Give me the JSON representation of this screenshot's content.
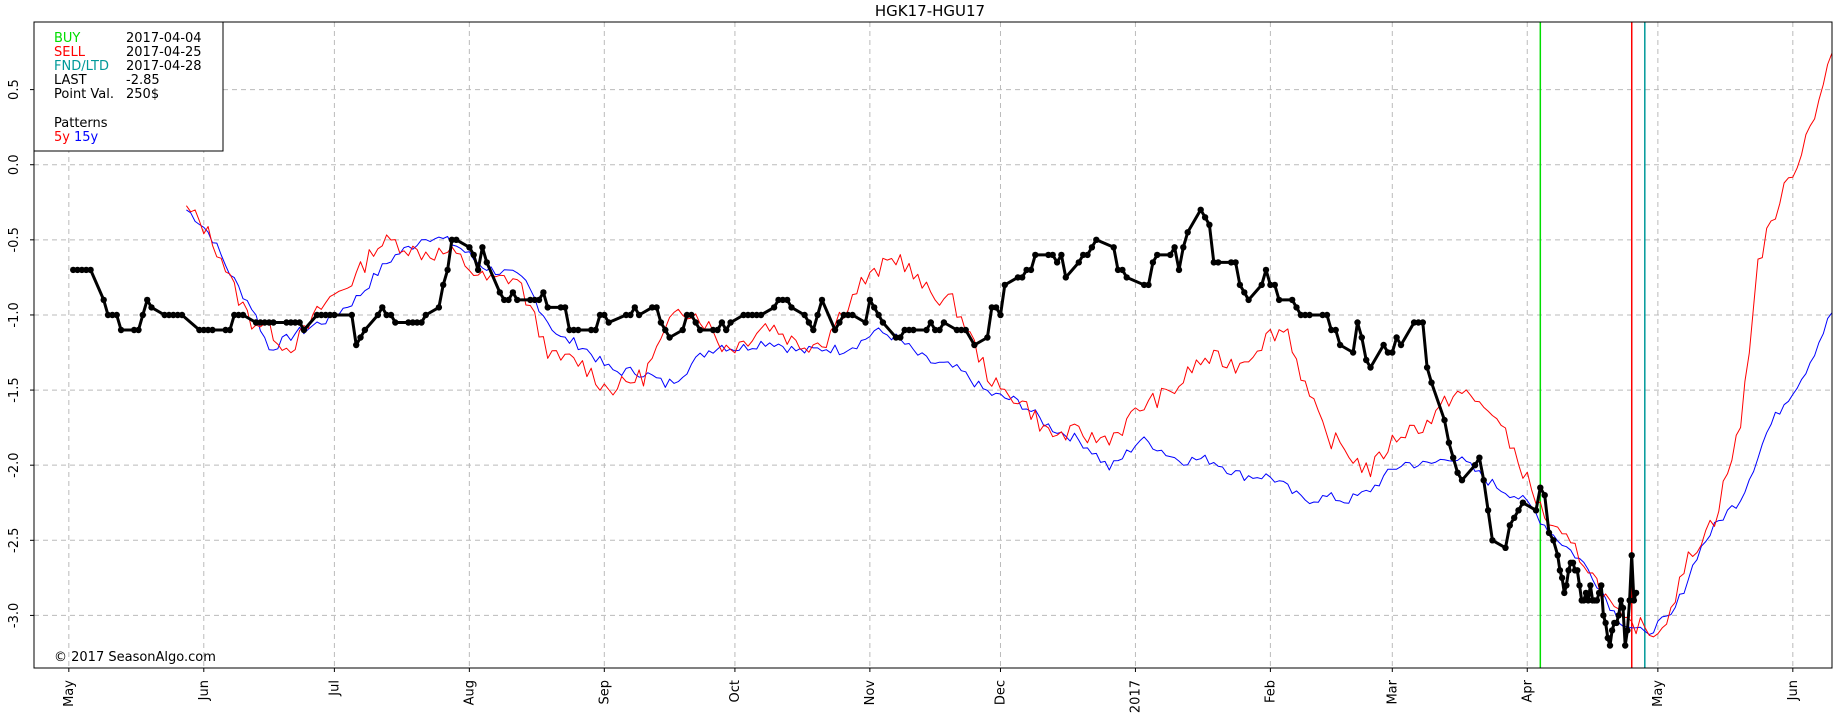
{
  "chart_data": {
    "type": "line",
    "title": "HGK17-HGU17",
    "xlabel": "",
    "ylabel": "",
    "x_range": [
      "2016-04-23",
      "2017-06-10"
    ],
    "ylim": [
      -3.35,
      0.95
    ],
    "y_ticks": [
      0.5,
      0.0,
      -0.5,
      -1.0,
      -1.5,
      -2.0,
      -2.5,
      -3.0
    ],
    "y_tick_labels": [
      "0.5",
      "0.0",
      "-0.5",
      "-1.0",
      "-1.5",
      "-2.0",
      "-2.5",
      "-3.0"
    ],
    "x_ticks": [
      {
        "date": "2016-05-01",
        "label": "May"
      },
      {
        "date": "2016-06-01",
        "label": "Jun"
      },
      {
        "date": "2016-07-01",
        "label": "Jul"
      },
      {
        "date": "2016-08-01",
        "label": "Aug"
      },
      {
        "date": "2016-09-01",
        "label": "Sep"
      },
      {
        "date": "2016-10-01",
        "label": "Oct"
      },
      {
        "date": "2016-11-01",
        "label": "Nov"
      },
      {
        "date": "2016-12-01",
        "label": "Dec"
      },
      {
        "date": "2017-01-01",
        "label": "2017"
      },
      {
        "date": "2017-02-01",
        "label": "Feb"
      },
      {
        "date": "2017-03-01",
        "label": "Mar"
      },
      {
        "date": "2017-04-01",
        "label": "Apr"
      },
      {
        "date": "2017-05-01",
        "label": "May"
      },
      {
        "date": "2017-06-01",
        "label": "Jun"
      }
    ],
    "grid": true,
    "vlines": [
      {
        "date": "2017-04-04",
        "color": "#00dd00"
      },
      {
        "date": "2017-04-25",
        "color": "#ff0000"
      },
      {
        "date": "2017-04-28",
        "color": "#009999"
      }
    ],
    "series": [
      {
        "name": "HGK17-HGU17",
        "color": "#000000",
        "markers": true,
        "points": [
          [
            "2016-05-02",
            -0.7
          ],
          [
            "2016-05-03",
            -0.7
          ],
          [
            "2016-05-04",
            -0.7
          ],
          [
            "2016-05-05",
            -0.7
          ],
          [
            "2016-05-06",
            -0.7
          ],
          [
            "2016-05-09",
            -0.9
          ],
          [
            "2016-05-10",
            -1.0
          ],
          [
            "2016-05-11",
            -1.0
          ],
          [
            "2016-05-12",
            -1.0
          ],
          [
            "2016-05-13",
            -1.1
          ],
          [
            "2016-05-16",
            -1.1
          ],
          [
            "2016-05-17",
            -1.1
          ],
          [
            "2016-05-18",
            -1.0
          ],
          [
            "2016-05-19",
            -0.9
          ],
          [
            "2016-05-20",
            -0.95
          ],
          [
            "2016-05-23",
            -1.0
          ],
          [
            "2016-05-24",
            -1.0
          ],
          [
            "2016-05-25",
            -1.0
          ],
          [
            "2016-05-26",
            -1.0
          ],
          [
            "2016-05-27",
            -1.0
          ],
          [
            "2016-05-31",
            -1.1
          ],
          [
            "2016-06-01",
            -1.1
          ],
          [
            "2016-06-02",
            -1.1
          ],
          [
            "2016-06-03",
            -1.1
          ],
          [
            "2016-06-06",
            -1.1
          ],
          [
            "2016-06-07",
            -1.1
          ],
          [
            "2016-06-08",
            -1.0
          ],
          [
            "2016-06-09",
            -1.0
          ],
          [
            "2016-06-10",
            -1.0
          ],
          [
            "2016-06-13",
            -1.05
          ],
          [
            "2016-06-14",
            -1.05
          ],
          [
            "2016-06-15",
            -1.05
          ],
          [
            "2016-06-16",
            -1.05
          ],
          [
            "2016-06-17",
            -1.05
          ],
          [
            "2016-06-20",
            -1.05
          ],
          [
            "2016-06-21",
            -1.05
          ],
          [
            "2016-06-22",
            -1.05
          ],
          [
            "2016-06-23",
            -1.05
          ],
          [
            "2016-06-24",
            -1.1
          ],
          [
            "2016-06-27",
            -1.0
          ],
          [
            "2016-06-28",
            -1.0
          ],
          [
            "2016-06-29",
            -1.0
          ],
          [
            "2016-06-30",
            -1.0
          ],
          [
            "2016-07-01",
            -1.0
          ],
          [
            "2016-07-05",
            -1.0
          ],
          [
            "2016-07-06",
            -1.2
          ],
          [
            "2016-07-07",
            -1.15
          ],
          [
            "2016-07-08",
            -1.1
          ],
          [
            "2016-07-11",
            -1.0
          ],
          [
            "2016-07-12",
            -0.95
          ],
          [
            "2016-07-13",
            -1.0
          ],
          [
            "2016-07-14",
            -1.0
          ],
          [
            "2016-07-15",
            -1.05
          ],
          [
            "2016-07-18",
            -1.05
          ],
          [
            "2016-07-19",
            -1.05
          ],
          [
            "2016-07-20",
            -1.05
          ],
          [
            "2016-07-21",
            -1.05
          ],
          [
            "2016-07-22",
            -1.0
          ],
          [
            "2016-07-25",
            -0.95
          ],
          [
            "2016-07-26",
            -0.8
          ],
          [
            "2016-07-27",
            -0.7
          ],
          [
            "2016-07-28",
            -0.5
          ],
          [
            "2016-07-29",
            -0.5
          ],
          [
            "2016-08-01",
            -0.55
          ],
          [
            "2016-08-02",
            -0.6
          ],
          [
            "2016-08-03",
            -0.7
          ],
          [
            "2016-08-04",
            -0.55
          ],
          [
            "2016-08-05",
            -0.65
          ],
          [
            "2016-08-08",
            -0.85
          ],
          [
            "2016-08-09",
            -0.9
          ],
          [
            "2016-08-10",
            -0.9
          ],
          [
            "2016-08-11",
            -0.85
          ],
          [
            "2016-08-12",
            -0.9
          ],
          [
            "2016-08-15",
            -0.9
          ],
          [
            "2016-08-16",
            -0.9
          ],
          [
            "2016-08-17",
            -0.9
          ],
          [
            "2016-08-18",
            -0.85
          ],
          [
            "2016-08-19",
            -0.95
          ],
          [
            "2016-08-22",
            -0.95
          ],
          [
            "2016-08-23",
            -0.95
          ],
          [
            "2016-08-24",
            -1.1
          ],
          [
            "2016-08-25",
            -1.1
          ],
          [
            "2016-08-26",
            -1.1
          ],
          [
            "2016-08-29",
            -1.1
          ],
          [
            "2016-08-30",
            -1.1
          ],
          [
            "2016-08-31",
            -1.0
          ],
          [
            "2016-09-01",
            -1.0
          ],
          [
            "2016-09-02",
            -1.05
          ],
          [
            "2016-09-06",
            -1.0
          ],
          [
            "2016-09-07",
            -1.0
          ],
          [
            "2016-09-08",
            -0.95
          ],
          [
            "2016-09-09",
            -1.0
          ],
          [
            "2016-09-12",
            -0.95
          ],
          [
            "2016-09-13",
            -0.95
          ],
          [
            "2016-09-14",
            -1.05
          ],
          [
            "2016-09-15",
            -1.1
          ],
          [
            "2016-09-16",
            -1.15
          ],
          [
            "2016-09-19",
            -1.1
          ],
          [
            "2016-09-20",
            -1.0
          ],
          [
            "2016-09-21",
            -1.0
          ],
          [
            "2016-09-22",
            -1.05
          ],
          [
            "2016-09-23",
            -1.1
          ],
          [
            "2016-09-26",
            -1.1
          ],
          [
            "2016-09-27",
            -1.1
          ],
          [
            "2016-09-28",
            -1.05
          ],
          [
            "2016-09-29",
            -1.1
          ],
          [
            "2016-09-30",
            -1.05
          ],
          [
            "2016-10-03",
            -1.0
          ],
          [
            "2016-10-04",
            -1.0
          ],
          [
            "2016-10-05",
            -1.0
          ],
          [
            "2016-10-06",
            -1.0
          ],
          [
            "2016-10-07",
            -1.0
          ],
          [
            "2016-10-10",
            -0.95
          ],
          [
            "2016-10-11",
            -0.9
          ],
          [
            "2016-10-12",
            -0.9
          ],
          [
            "2016-10-13",
            -0.9
          ],
          [
            "2016-10-14",
            -0.95
          ],
          [
            "2016-10-17",
            -1.0
          ],
          [
            "2016-10-18",
            -1.05
          ],
          [
            "2016-10-19",
            -1.1
          ],
          [
            "2016-10-20",
            -1.0
          ],
          [
            "2016-10-21",
            -0.9
          ],
          [
            "2016-10-24",
            -1.1
          ],
          [
            "2016-10-25",
            -1.05
          ],
          [
            "2016-10-26",
            -1.0
          ],
          [
            "2016-10-27",
            -1.0
          ],
          [
            "2016-10-28",
            -1.0
          ],
          [
            "2016-10-31",
            -1.05
          ],
          [
            "2016-11-01",
            -0.9
          ],
          [
            "2016-11-02",
            -0.95
          ],
          [
            "2016-11-03",
            -1.0
          ],
          [
            "2016-11-04",
            -1.05
          ],
          [
            "2016-11-07",
            -1.15
          ],
          [
            "2016-11-08",
            -1.15
          ],
          [
            "2016-11-09",
            -1.1
          ],
          [
            "2016-11-10",
            -1.1
          ],
          [
            "2016-11-11",
            -1.1
          ],
          [
            "2016-11-14",
            -1.1
          ],
          [
            "2016-11-15",
            -1.05
          ],
          [
            "2016-11-16",
            -1.1
          ],
          [
            "2016-11-17",
            -1.1
          ],
          [
            "2016-11-18",
            -1.05
          ],
          [
            "2016-11-21",
            -1.1
          ],
          [
            "2016-11-22",
            -1.1
          ],
          [
            "2016-11-23",
            -1.1
          ],
          [
            "2016-11-25",
            -1.2
          ],
          [
            "2016-11-28",
            -1.15
          ],
          [
            "2016-11-29",
            -0.95
          ],
          [
            "2016-11-30",
            -0.95
          ],
          [
            "2016-12-01",
            -1.0
          ],
          [
            "2016-12-02",
            -0.8
          ],
          [
            "2016-12-05",
            -0.75
          ],
          [
            "2016-12-06",
            -0.75
          ],
          [
            "2016-12-07",
            -0.7
          ],
          [
            "2016-12-08",
            -0.7
          ],
          [
            "2016-12-09",
            -0.6
          ],
          [
            "2016-12-12",
            -0.6
          ],
          [
            "2016-12-13",
            -0.6
          ],
          [
            "2016-12-14",
            -0.65
          ],
          [
            "2016-12-15",
            -0.6
          ],
          [
            "2016-12-16",
            -0.75
          ],
          [
            "2016-12-19",
            -0.65
          ],
          [
            "2016-12-20",
            -0.6
          ],
          [
            "2016-12-21",
            -0.6
          ],
          [
            "2016-12-22",
            -0.55
          ],
          [
            "2016-12-23",
            -0.5
          ],
          [
            "2016-12-27",
            -0.55
          ],
          [
            "2016-12-28",
            -0.7
          ],
          [
            "2016-12-29",
            -0.7
          ],
          [
            "2016-12-30",
            -0.75
          ],
          [
            "2017-01-03",
            -0.8
          ],
          [
            "2017-01-04",
            -0.8
          ],
          [
            "2017-01-05",
            -0.65
          ],
          [
            "2017-01-06",
            -0.6
          ],
          [
            "2017-01-09",
            -0.6
          ],
          [
            "2017-01-10",
            -0.55
          ],
          [
            "2017-01-11",
            -0.7
          ],
          [
            "2017-01-12",
            -0.55
          ],
          [
            "2017-01-13",
            -0.45
          ],
          [
            "2017-01-16",
            -0.3
          ],
          [
            "2017-01-17",
            -0.35
          ],
          [
            "2017-01-18",
            -0.4
          ],
          [
            "2017-01-19",
            -0.65
          ],
          [
            "2017-01-20",
            -0.65
          ],
          [
            "2017-01-23",
            -0.65
          ],
          [
            "2017-01-24",
            -0.65
          ],
          [
            "2017-01-25",
            -0.8
          ],
          [
            "2017-01-26",
            -0.85
          ],
          [
            "2017-01-27",
            -0.9
          ],
          [
            "2017-01-30",
            -0.8
          ],
          [
            "2017-01-31",
            -0.7
          ],
          [
            "2017-02-01",
            -0.8
          ],
          [
            "2017-02-02",
            -0.8
          ],
          [
            "2017-02-03",
            -0.9
          ]
        ]
      },
      {
        "name": "5y",
        "color": "#ff0000",
        "markers": false,
        "points": []
      },
      {
        "name": "15y",
        "color": "#0000ff",
        "markers": false,
        "points": []
      }
    ],
    "legend": {
      "placement": "top-left",
      "entries": [
        {
          "label": "BUY",
          "value": "2017-04-04",
          "color": "#00dd00"
        },
        {
          "label": "SELL",
          "value": "2017-04-25",
          "color": "#ff0000"
        },
        {
          "label": "FND/LTD",
          "value": "2017-04-28",
          "color": "#009999"
        },
        {
          "label": "LAST",
          "value": "-2.85",
          "color": "#000000"
        },
        {
          "label": "Point Val.",
          "value": "250$",
          "color": "#000000"
        }
      ],
      "patterns_label": "Patterns",
      "patterns": [
        {
          "label": "5y",
          "color": "#ff0000"
        },
        {
          "label": "15y",
          "color": "#0000ff"
        }
      ]
    },
    "annotation": "© 2017 SeasonAlgo.com"
  }
}
